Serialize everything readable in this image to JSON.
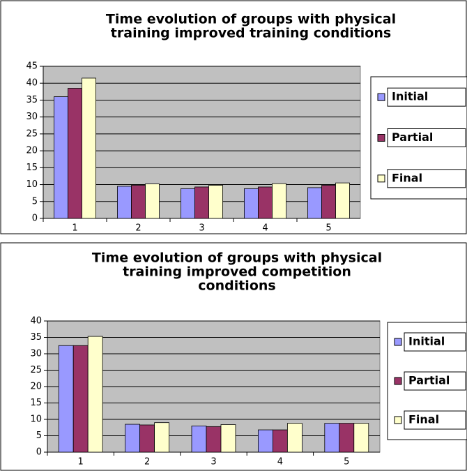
{
  "chart_data": [
    {
      "type": "bar",
      "title": [
        "Time evolution of groups with physical",
        "training improved training conditions"
      ],
      "categories": [
        "1",
        "2",
        "3",
        "4",
        "5"
      ],
      "series": [
        {
          "name": "Initial",
          "color": "#9999ff",
          "values": [
            36,
            9.5,
            8.8,
            8.8,
            9.1
          ]
        },
        {
          "name": "Partial",
          "color": "#993366",
          "values": [
            38.5,
            9.8,
            9.3,
            9.3,
            9.8
          ]
        },
        {
          "name": "Final",
          "color": "#ffffcc",
          "values": [
            41.5,
            10.2,
            9.8,
            10.3,
            10.5
          ]
        }
      ],
      "ylim": [
        0,
        45
      ],
      "yticks": [
        0,
        5,
        10,
        15,
        20,
        25,
        30,
        35,
        40,
        45
      ],
      "grid": true,
      "legend": "right"
    },
    {
      "type": "bar",
      "title": [
        "Time evolution of groups with physical",
        "training improved competition",
        "conditions"
      ],
      "categories": [
        "1",
        "2",
        "3",
        "4",
        "5"
      ],
      "series": [
        {
          "name": "Initial",
          "color": "#9999ff",
          "values": [
            32.5,
            8.5,
            8,
            6.8,
            8.8
          ]
        },
        {
          "name": "Partial",
          "color": "#993366",
          "values": [
            32.5,
            8.3,
            7.8,
            6.8,
            8.8
          ]
        },
        {
          "name": "Final",
          "color": "#ffffcc",
          "values": [
            35.3,
            9,
            8.4,
            8.8,
            8.8
          ]
        }
      ],
      "ylim": [
        0,
        40
      ],
      "yticks": [
        0,
        5,
        10,
        15,
        20,
        25,
        30,
        35,
        40
      ],
      "grid": true,
      "legend": "right"
    }
  ]
}
